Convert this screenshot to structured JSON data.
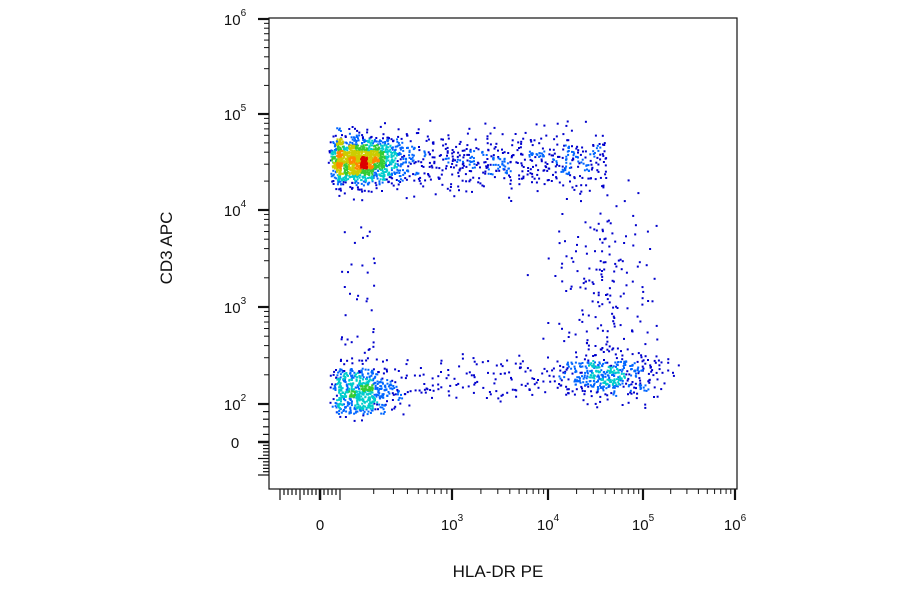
{
  "chart_data": {
    "type": "scatter",
    "plot_style": "flow cytometry density dot plot (biexponential axes)",
    "xlabel": "HLA-DR PE",
    "ylabel": "CD3 APC",
    "x_scale": "biexponential",
    "y_scale": "biexponential",
    "xlim": [
      -200,
      1000000
    ],
    "ylim": [
      -200,
      1000000
    ],
    "x_ticks": [
      {
        "value": 0,
        "base": "0",
        "exp": ""
      },
      {
        "value": 1000,
        "base": "10",
        "exp": "3"
      },
      {
        "value": 10000,
        "base": "10",
        "exp": "4"
      },
      {
        "value": 100000,
        "base": "10",
        "exp": "5"
      },
      {
        "value": 1000000,
        "base": "10",
        "exp": "6"
      }
    ],
    "y_ticks": [
      {
        "value": 0,
        "base": "0",
        "exp": ""
      },
      {
        "value": 100,
        "base": "10",
        "exp": "2"
      },
      {
        "value": 1000,
        "base": "10",
        "exp": "3"
      },
      {
        "value": 10000,
        "base": "10",
        "exp": "4"
      },
      {
        "value": 100000,
        "base": "10",
        "exp": "5"
      },
      {
        "value": 1000000,
        "base": "10",
        "exp": "6"
      }
    ],
    "grid": false,
    "legend": "none",
    "color_scale": [
      "#0000cc",
      "#0066ff",
      "#00cccc",
      "#33cc33",
      "#cccc00",
      "#ff8800",
      "#dd0000"
    ],
    "populations": [
      {
        "center": [
          150,
          33000
        ],
        "spread": [
          0.18,
          0.12
        ],
        "count": 1400,
        "peak_density": "high"
      },
      {
        "center": [
          150,
          140
        ],
        "spread": [
          0.16,
          0.13
        ],
        "count": 600,
        "peak_density": "medium"
      },
      {
        "center": [
          40000,
          200
        ],
        "spread": [
          0.28,
          0.12
        ],
        "count": 450,
        "peak_density": "low"
      },
      {
        "x_range": [
          300,
          40000
        ],
        "y_center": 33000,
        "y_spread": 0.15,
        "count": 550,
        "peak_density": "low"
      },
      {
        "x_range": [
          300,
          8000
        ],
        "y_center": 180,
        "y_spread": 0.12,
        "count": 110,
        "peak_density": "low"
      },
      {
        "center": [
          40000,
          1800
        ],
        "spread": [
          0.28,
          0.45
        ],
        "count": 170,
        "peak_density": "low"
      },
      {
        "x_range": [
          100,
          200
        ],
        "y_range": [
          300,
          8000
        ],
        "count": 35,
        "peak_density": "low"
      }
    ]
  }
}
